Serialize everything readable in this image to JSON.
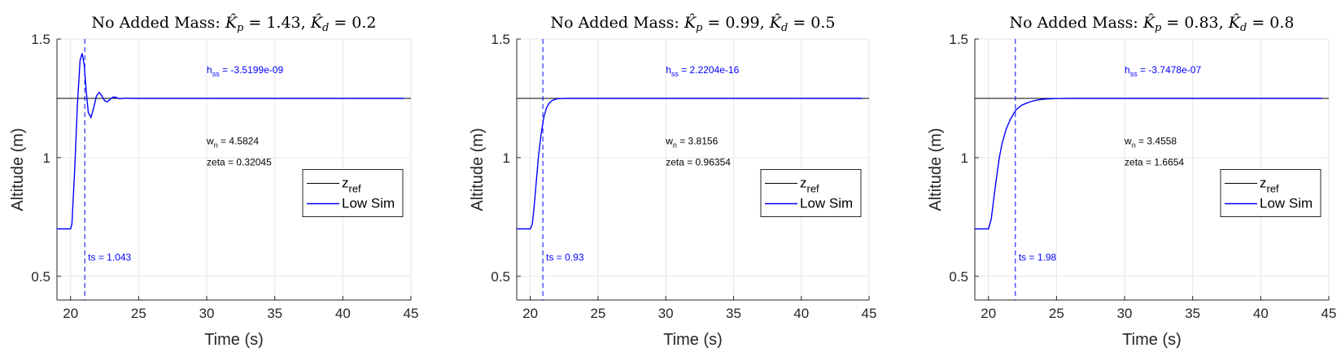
{
  "chart_data": [
    {
      "type": "line",
      "title": {
        "prefix": "No Added Mass: ",
        "kp": "1.43",
        "kd": "0.2"
      },
      "xlabel": "Time (s)",
      "ylabel": "Altitude (m)",
      "xlim": [
        19,
        45
      ],
      "ylim": [
        0.4,
        1.5
      ],
      "xticks": [
        20,
        25,
        30,
        35,
        40,
        45
      ],
      "yticks": [
        0.5,
        1,
        1.5
      ],
      "grid": true,
      "legend": {
        "placement": "right",
        "entries": [
          {
            "name": "z",
            "sub": "ref",
            "color": "#000000"
          },
          {
            "name": "Low Sim",
            "sub": "",
            "color": "#0000ff"
          }
        ]
      },
      "series": [
        {
          "name": "z_ref",
          "color": "#000000",
          "x": [
            19,
            45
          ],
          "y": [
            1.25,
            1.25
          ]
        },
        {
          "name": "Low Sim",
          "color": "#0000ff",
          "x": [
            19,
            20.0,
            20.1,
            20.3,
            20.5,
            20.7,
            20.85,
            21.0,
            21.15,
            21.3,
            21.5,
            21.7,
            21.9,
            22.1,
            22.3,
            22.5,
            22.7,
            22.9,
            23.1,
            23.3,
            23.6,
            24.0,
            24.5,
            25,
            30,
            35,
            40,
            44.5
          ],
          "y": [
            0.7,
            0.7,
            0.72,
            0.95,
            1.22,
            1.41,
            1.44,
            1.39,
            1.28,
            1.19,
            1.17,
            1.21,
            1.26,
            1.275,
            1.26,
            1.24,
            1.235,
            1.245,
            1.255,
            1.255,
            1.248,
            1.251,
            1.25,
            1.25,
            1.25,
            1.25,
            1.25,
            1.25
          ]
        }
      ],
      "settling_line": {
        "x": 21.043,
        "label": "ts = 1.043"
      },
      "annotations": {
        "hss_prefix": "h",
        "hss_sub": "ss",
        "hss_value": " = -3.5199e-09",
        "wn_prefix": "w",
        "wn_sub": "n",
        "wn_value": " = 4.5824",
        "zeta": "zeta = 0.32045"
      }
    },
    {
      "type": "line",
      "title": {
        "prefix": "No Added Mass: ",
        "kp": "0.99",
        "kd": "0.5"
      },
      "xlabel": "Time (s)",
      "ylabel": "Altitude (m)",
      "xlim": [
        19,
        45
      ],
      "ylim": [
        0.4,
        1.5
      ],
      "xticks": [
        20,
        25,
        30,
        35,
        40,
        45
      ],
      "yticks": [
        0.5,
        1,
        1.5
      ],
      "grid": true,
      "legend": {
        "placement": "right",
        "entries": [
          {
            "name": "z",
            "sub": "ref",
            "color": "#000000"
          },
          {
            "name": "Low Sim",
            "sub": "",
            "color": "#0000ff"
          }
        ]
      },
      "series": [
        {
          "name": "z_ref",
          "color": "#000000",
          "x": [
            19,
            45
          ],
          "y": [
            1.25,
            1.25
          ]
        },
        {
          "name": "Low Sim",
          "color": "#0000ff",
          "x": [
            19,
            20.0,
            20.15,
            20.3,
            20.45,
            20.6,
            20.8,
            21.0,
            21.2,
            21.4,
            21.6,
            21.8,
            22.0,
            22.3,
            22.7,
            23,
            25,
            30,
            35,
            40,
            44.5
          ],
          "y": [
            0.7,
            0.7,
            0.72,
            0.8,
            0.9,
            1.0,
            1.1,
            1.17,
            1.21,
            1.23,
            1.24,
            1.245,
            1.248,
            1.249,
            1.25,
            1.25,
            1.25,
            1.25,
            1.25,
            1.25,
            1.25
          ]
        }
      ],
      "settling_line": {
        "x": 20.93,
        "label": "ts = 0.93"
      },
      "annotations": {
        "hss_prefix": "h",
        "hss_sub": "ss",
        "hss_value": " = 2.2204e-16",
        "wn_prefix": "w",
        "wn_sub": "n",
        "wn_value": " = 3.8156",
        "zeta": "zeta = 0.96354"
      }
    },
    {
      "type": "line",
      "title": {
        "prefix": "No Added Mass: ",
        "kp": "0.83",
        "kd": "0.8"
      },
      "xlabel": "Time (s)",
      "ylabel": "Altitude (m)",
      "xlim": [
        19,
        45
      ],
      "ylim": [
        0.4,
        1.5
      ],
      "xticks": [
        20,
        25,
        30,
        35,
        40,
        45
      ],
      "yticks": [
        0.5,
        1,
        1.5
      ],
      "grid": true,
      "legend": {
        "placement": "right",
        "entries": [
          {
            "name": "z",
            "sub": "ref",
            "color": "#000000"
          },
          {
            "name": "Low Sim",
            "sub": "",
            "color": "#0000ff"
          }
        ]
      },
      "series": [
        {
          "name": "z_ref",
          "color": "#000000",
          "x": [
            19,
            45
          ],
          "y": [
            1.25,
            1.25
          ]
        },
        {
          "name": "Low Sim",
          "color": "#0000ff",
          "x": [
            19,
            20.0,
            20.2,
            20.4,
            20.6,
            20.8,
            21.0,
            21.3,
            21.6,
            22.0,
            22.4,
            22.8,
            23.2,
            23.6,
            24.0,
            24.5,
            25,
            26,
            27,
            30,
            35,
            40,
            44.5
          ],
          "y": [
            0.7,
            0.7,
            0.74,
            0.83,
            0.92,
            1.0,
            1.06,
            1.12,
            1.16,
            1.2,
            1.22,
            1.23,
            1.238,
            1.243,
            1.246,
            1.248,
            1.249,
            1.25,
            1.25,
            1.25,
            1.25,
            1.25,
            1.25
          ]
        }
      ],
      "settling_line": {
        "x": 21.98,
        "label": "ts = 1.98"
      },
      "annotations": {
        "hss_prefix": "h",
        "hss_sub": "ss",
        "hss_value": " = -3.7478e-07",
        "wn_prefix": "w",
        "wn_sub": "n",
        "wn_value": " = 3.4558",
        "zeta": "zeta = 1.6654"
      }
    }
  ]
}
